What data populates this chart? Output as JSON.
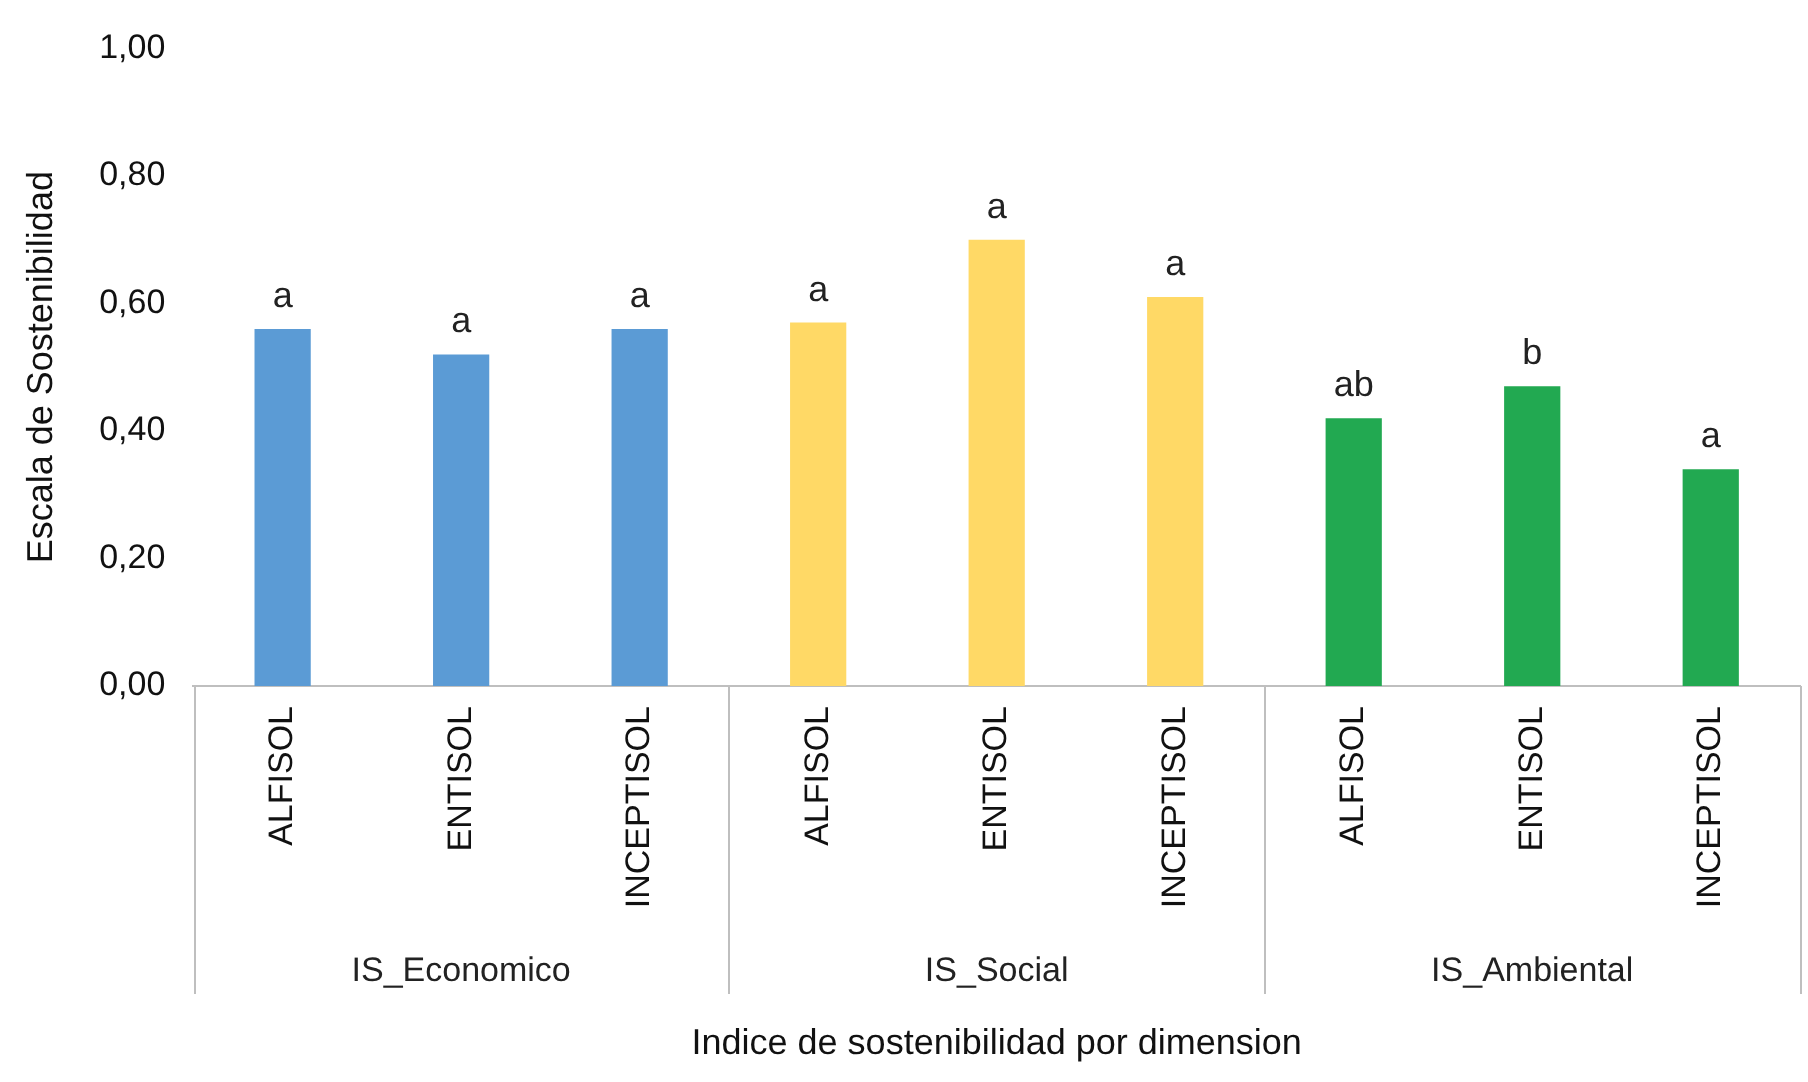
{
  "chart_data": {
    "type": "bar",
    "xlabel": "Indice de sostenibilidad por dimension",
    "ylabel": "Escala de Sostenibilidad",
    "categories": [
      "ALFISOL",
      "ENTISOL",
      "INCEPTISOL",
      "ALFISOL",
      "ENTISOL",
      "INCEPTISOL",
      "ALFISOL",
      "ENTISOL",
      "INCEPTISOL"
    ],
    "values": [
      0.56,
      0.52,
      0.56,
      0.57,
      0.7,
      0.61,
      0.42,
      0.47,
      0.34
    ],
    "colors": [
      "#5b9bd5",
      "#5b9bd5",
      "#5b9bd5",
      "#ffd966",
      "#ffd966",
      "#ffd966",
      "#22a951",
      "#22a951",
      "#22a951"
    ],
    "value_labels": [
      "a",
      "a",
      "a",
      "a",
      "a",
      "a",
      "ab",
      "b",
      "a"
    ],
    "annotations": [
      "IS_Economico",
      "IS_Social",
      "IS_Ambiental"
    ],
    "ylim": [
      0,
      1
    ],
    "yticks": [
      {
        "value": 0,
        "label": "0,00"
      },
      {
        "value": 0.2,
        "label": "0,20"
      },
      {
        "value": 0.4,
        "label": "0,40"
      },
      {
        "value": 0.6,
        "label": "0,60"
      },
      {
        "value": 0.8,
        "label": "0,80"
      },
      {
        "value": 1,
        "label": "1,00"
      }
    ],
    "grid": false,
    "legend": false
  }
}
